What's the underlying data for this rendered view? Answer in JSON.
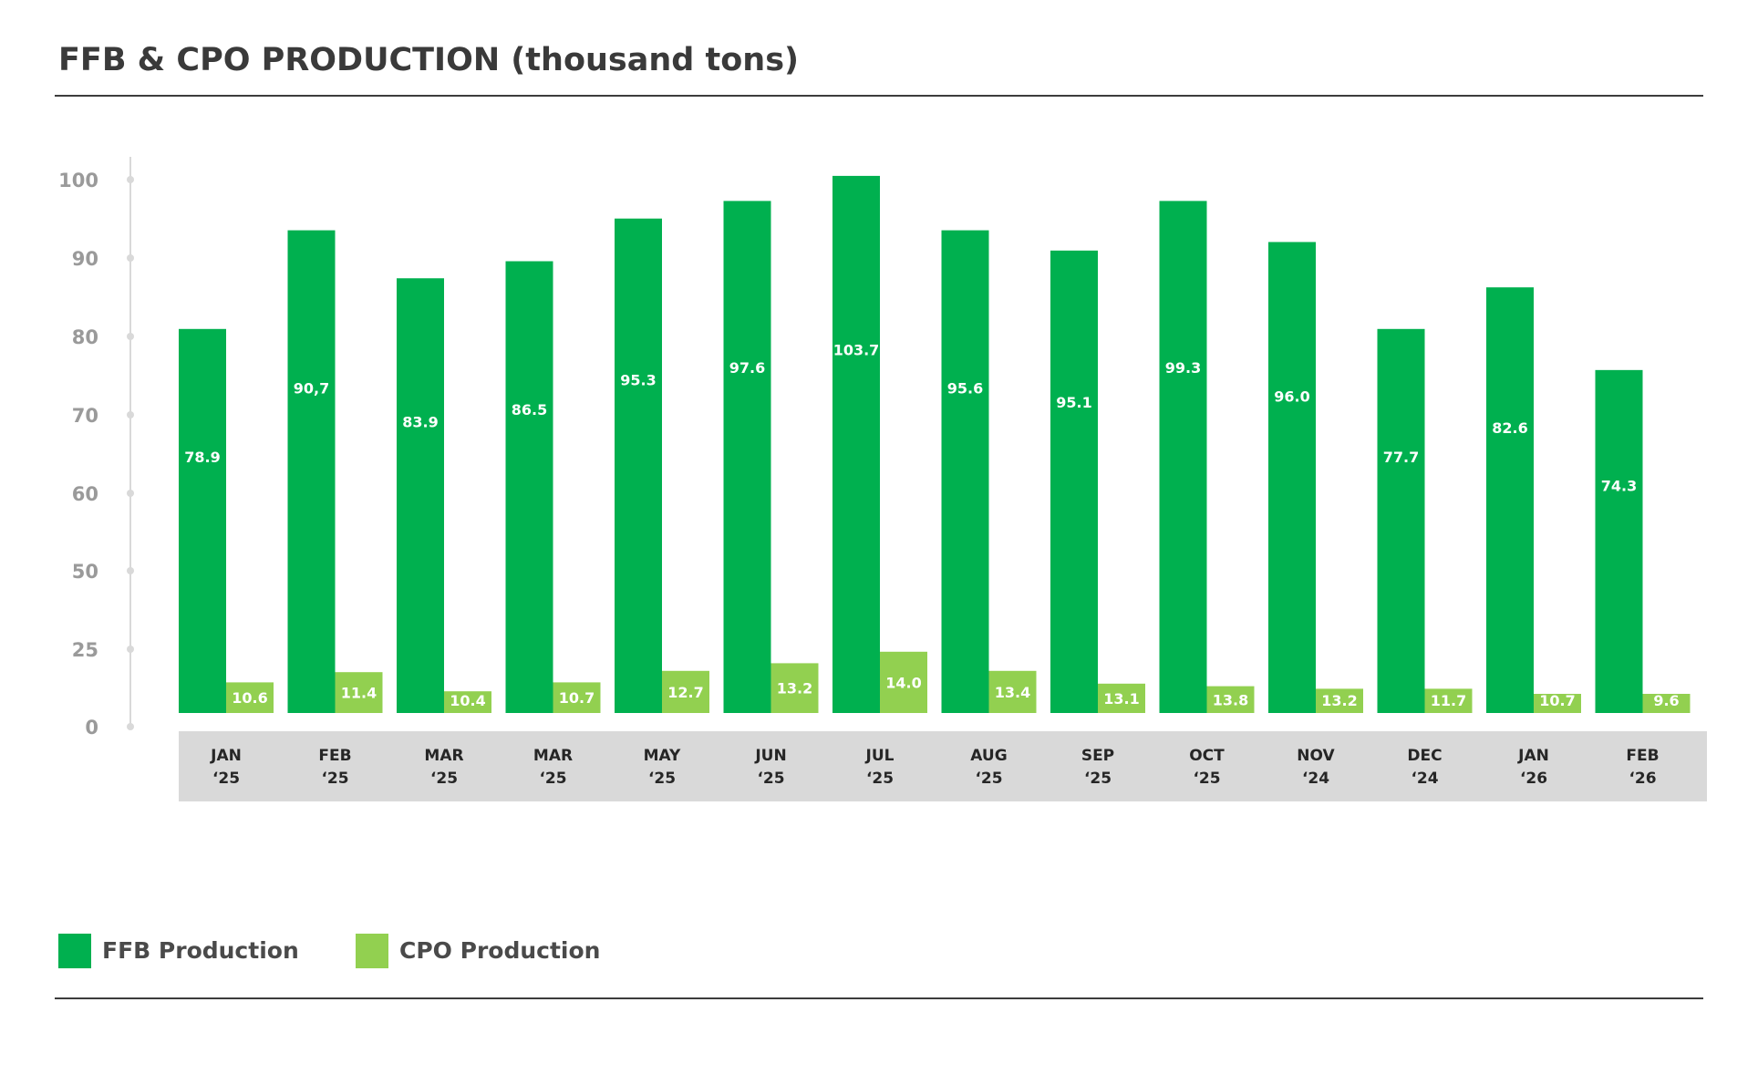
{
  "chart_data": {
    "type": "bar",
    "title": "FFB & CPO PRODUCTION (thousand tons)",
    "xlabel": "",
    "ylabel": "",
    "y_ticks": [
      "0",
      "25",
      "50",
      "60",
      "70",
      "80",
      "90",
      "100"
    ],
    "categories": [
      [
        "JAN",
        "‘25"
      ],
      [
        "FEB",
        "‘25"
      ],
      [
        "MAR",
        "‘25"
      ],
      [
        "MAR",
        "‘25"
      ],
      [
        "MAY",
        "‘25"
      ],
      [
        "JUN",
        "‘25"
      ],
      [
        "JUL",
        "‘25"
      ],
      [
        "AUG",
        "‘25"
      ],
      [
        "SEP",
        "‘25"
      ],
      [
        "OCT",
        "‘25"
      ],
      [
        "NOV",
        "‘24"
      ],
      [
        "DEC",
        "‘24"
      ],
      [
        "JAN",
        "‘26"
      ],
      [
        "FEB",
        "‘26"
      ]
    ],
    "series": [
      {
        "name": "FFB Production",
        "color": "#00b04f",
        "values": [
          78.9,
          90.7,
          83.9,
          86.5,
          95.3,
          97.6,
          103.7,
          95.6,
          95.1,
          99.3,
          96.0,
          77.7,
          82.6,
          74.3
        ],
        "labels": [
          "78.9",
          "90,7",
          "83.9",
          "86.5",
          "95.3",
          "97.6",
          "103.7",
          "95.6",
          "95.1",
          "99.3",
          "96.0",
          "77.7",
          "82.6",
          "74.3"
        ],
        "displayed_heights": [
          72,
          90.5,
          81.5,
          84.7,
          92.7,
          96,
          100.7,
          90.5,
          86.7,
          96,
          88.3,
          72,
          79.8,
          64.3
        ]
      },
      {
        "name": "CPO Production",
        "color": "#92d050",
        "values": [
          10.6,
          11.4,
          10.4,
          10.7,
          12.7,
          13.2,
          14.0,
          13.4,
          13.1,
          13.8,
          13.2,
          11.7,
          10.7,
          9.6
        ],
        "labels": [
          "10.6",
          "11.4",
          "10.4",
          "10.7",
          "12.7",
          "13.2",
          "14.0",
          "13.4",
          "13.1",
          "13.8",
          "13.2",
          "11.7",
          "10.7",
          "9.6"
        ],
        "displayed_heights": [
          12,
          16,
          8.5,
          12,
          16.5,
          19.5,
          24,
          16.5,
          11.5,
          10.5,
          9.5,
          9.5,
          7.5,
          7.5
        ]
      }
    ],
    "legend": "bottom-left",
    "grid": false
  },
  "colors": {
    "title_text": "#3a3a3a",
    "axis": "#d9d9d9",
    "tick_text": "#9a9a9a",
    "category_band": "#d9d9d9",
    "category_text": "#262626",
    "bar_label_text": "#ffffff"
  }
}
